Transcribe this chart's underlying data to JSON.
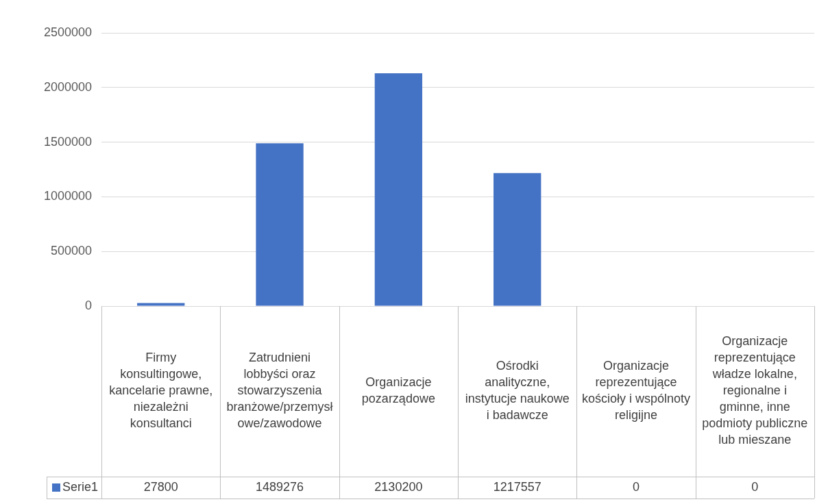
{
  "chart_data": {
    "type": "bar",
    "categories": [
      "Firmy konsultingowe, kancelarie prawne, niezależni konsultanci",
      "Zatrudnieni lobbyści oraz stowarzyszenia branżowe/przemysłowe/zawodowe",
      "Organizacje pozarządowe",
      "Ośrodki analityczne, instytucje naukowe i badawcze",
      "Organizacje reprezentujące kościoły i wspólnoty religijne",
      "Organizacje reprezentujące władze lokalne, regionalne i gminne, inne podmioty publiczne lub mieszane"
    ],
    "series": [
      {
        "name": "Serie1",
        "color": "#4472c4",
        "values": [
          27800,
          1489276,
          2130200,
          1217557,
          0,
          0
        ]
      }
    ],
    "ylim": [
      0,
      2500000
    ],
    "yticks": [
      0,
      500000,
      1000000,
      1500000,
      2000000,
      2500000
    ],
    "grid": "y",
    "data_labels": true
  }
}
